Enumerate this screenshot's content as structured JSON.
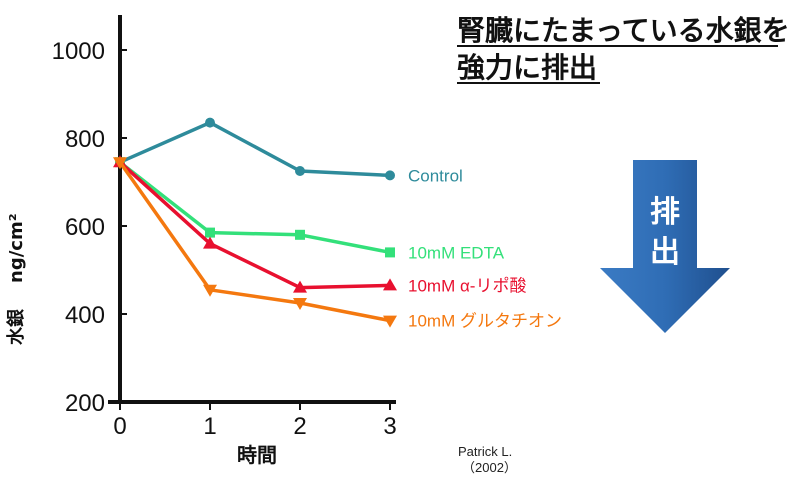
{
  "title_lines": [
    "腎臓にたまっている水銀を",
    "強力に排出"
  ],
  "credit": {
    "line1": "Patrick L.",
    "line2": "（2002）"
  },
  "arrow": {
    "label1": "排",
    "label2": "出",
    "color": "#2f6db5"
  },
  "chart_data": {
    "type": "line",
    "title": "",
    "xlabel": "時間",
    "ylabel_main": "水銀",
    "ylabel_unit": "ng/cm²",
    "x": [
      0,
      1,
      2,
      3
    ],
    "xlim": [
      0,
      3
    ],
    "ylim": [
      200,
      1060
    ],
    "x_ticks": [
      0,
      1,
      2,
      3
    ],
    "y_ticks": [
      200,
      400,
      600,
      800,
      1000
    ],
    "grid": false,
    "series": [
      {
        "name": "Control",
        "marker": "circle",
        "color": "#2e8b9b",
        "values": [
          745,
          835,
          725,
          715
        ]
      },
      {
        "name": "10mM EDTA",
        "marker": "square",
        "color": "#33e07a",
        "values": [
          745,
          585,
          580,
          540
        ]
      },
      {
        "name": "10mM α-リポ酸",
        "marker": "triangle-up",
        "color": "#e8102f",
        "values": [
          745,
          560,
          460,
          465
        ]
      },
      {
        "name": "10mM グルタチオン",
        "marker": "triangle-down",
        "color": "#f4780f",
        "values": [
          745,
          455,
          425,
          385
        ]
      }
    ]
  }
}
